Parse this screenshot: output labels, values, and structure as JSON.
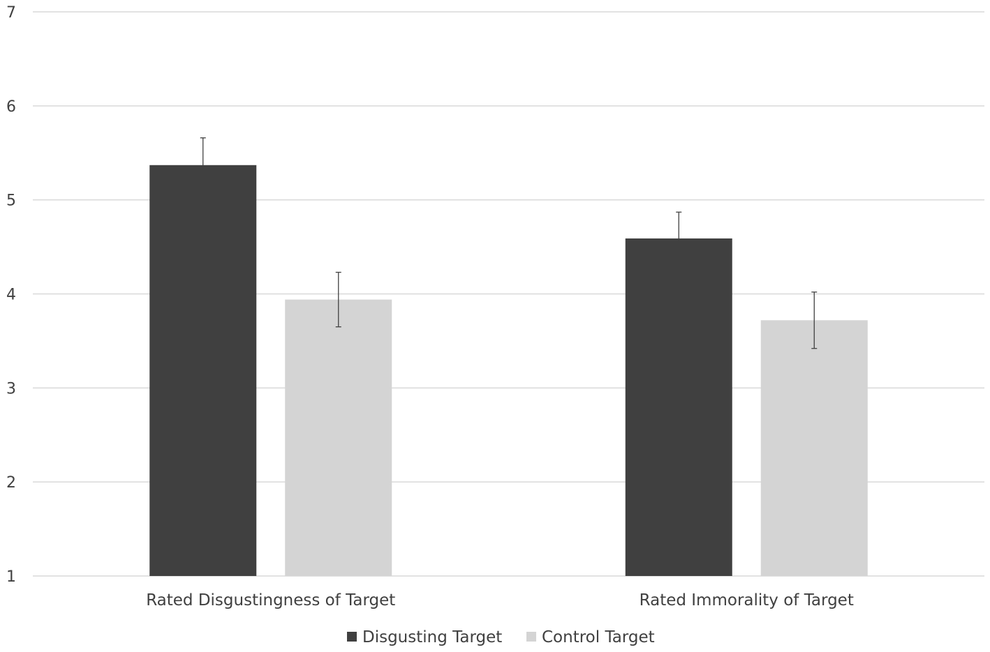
{
  "chart_data": {
    "type": "bar",
    "title": "",
    "xlabel": "",
    "ylabel": "",
    "categories": [
      "Rated Disgustingness of Target",
      "Rated Immorality of Target"
    ],
    "series": [
      {
        "name": "Disgusting Target",
        "color": "#404040",
        "values": [
          5.37,
          4.59
        ],
        "error": [
          0.29,
          0.28
        ]
      },
      {
        "name": "Control Target",
        "color": "#d4d4d4",
        "values": [
          3.94,
          3.72
        ],
        "error": [
          0.29,
          0.3
        ]
      }
    ],
    "ylim": [
      1,
      7
    ],
    "yticks": [
      "1",
      "2",
      "3",
      "4",
      "5",
      "6",
      "7"
    ],
    "grid": true,
    "gridline_color": "#d9d9d9",
    "error_bar_color": "#404040",
    "legend_position": "bottom"
  }
}
